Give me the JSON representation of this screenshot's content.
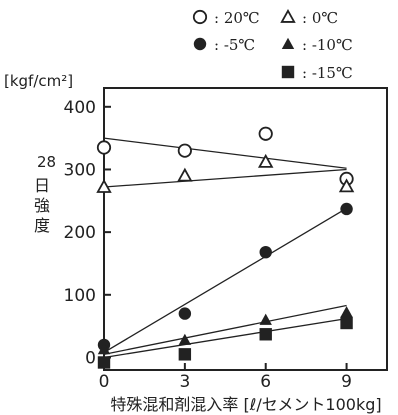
{
  "chart_data": {
    "type": "scatter",
    "title": "",
    "ylabel_top": "28",
    "ylabel_chars": [
      "日",
      "強",
      "度"
    ],
    "unit": "[kgf/cm²]",
    "xlabel": "特殊混和剤混入率 [ℓ/セメント100kg]",
    "x_ticks": [
      0,
      3,
      6,
      9
    ],
    "y_ticks": [
      0,
      100,
      200,
      300,
      400
    ],
    "xlim": [
      0,
      10.5
    ],
    "ylim": [
      -20,
      430
    ],
    "grid": false,
    "legend_position": "top-right",
    "series": [
      {
        "name": "20℃",
        "marker": "circle-open",
        "x": [
          0,
          3,
          6,
          9
        ],
        "y": [
          335,
          330,
          357,
          285
        ],
        "fit": {
          "x": [
            0,
            9
          ],
          "y": [
            350,
            302
          ]
        }
      },
      {
        "name": "0℃",
        "marker": "triangle-open",
        "x": [
          0,
          3,
          6,
          9
        ],
        "y": [
          272,
          290,
          312,
          273
        ],
        "fit": {
          "x": [
            0,
            9
          ],
          "y": [
            272,
            300
          ]
        }
      },
      {
        "name": "-5℃",
        "marker": "circle-filled",
        "x": [
          0,
          3,
          6,
          9
        ],
        "y": [
          20,
          70,
          168,
          237
        ],
        "fit": {
          "x": [
            0,
            9
          ],
          "y": [
            8,
            238
          ]
        }
      },
      {
        "name": "-10℃",
        "marker": "triangle-filled",
        "x": [
          0,
          3,
          6,
          9
        ],
        "y": [
          13,
          28,
          60,
          72
        ],
        "fit": {
          "x": [
            0,
            9
          ],
          "y": [
            5,
            83
          ]
        }
      },
      {
        "name": "-15℃",
        "marker": "square-filled",
        "x": [
          0,
          3,
          6,
          9
        ],
        "y": [
          -8,
          5,
          37,
          55
        ],
        "fit": {
          "x": [
            0,
            9
          ],
          "y": [
            0,
            62
          ]
        }
      }
    ]
  }
}
